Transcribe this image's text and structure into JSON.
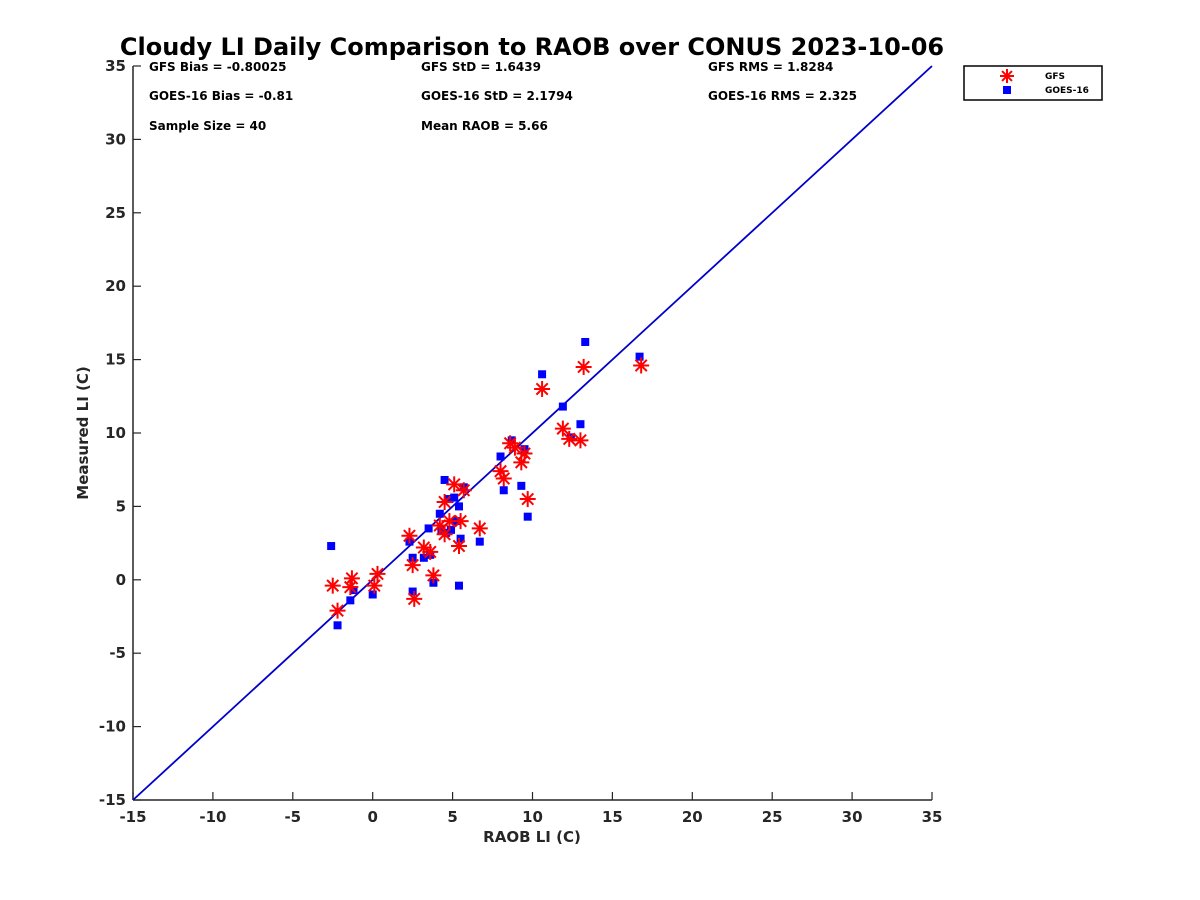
{
  "chart_data": {
    "type": "scatter",
    "title": "Cloudy LI Daily Comparison to RAOB over CONUS 2023-10-06",
    "xlabel": "RAOB LI (C)",
    "ylabel": "Measured LI (C)",
    "xlim": [
      -15,
      35
    ],
    "ylim": [
      -15,
      35
    ],
    "xticks": [
      "-15",
      "-10",
      "-5",
      "0",
      "5",
      "10",
      "15",
      "20",
      "25",
      "30",
      "35"
    ],
    "yticks": [
      "-15",
      "-10",
      "-5",
      "0",
      "5",
      "10",
      "15",
      "20",
      "25",
      "30",
      "35"
    ],
    "grid": false,
    "legend_position": "outside-top-right",
    "stats": [
      [
        "GFS Bias = -0.80025",
        "GFS StD = 1.6439",
        "GFS RMS = 1.8284"
      ],
      [
        "GOES-16 Bias = -0.81",
        "GOES-16 StD = 2.1794",
        "GOES-16 RMS = 2.325"
      ],
      [
        "Sample Size = 40",
        "Mean RAOB = 5.66",
        ""
      ]
    ],
    "reference_line": {
      "x": [
        -15,
        35
      ],
      "y": [
        -15,
        35
      ],
      "color": "#0000cc"
    },
    "series": [
      {
        "name": "GFS",
        "marker": "asterisk",
        "color": "#ff0000",
        "points": [
          [
            -2.5,
            -0.4
          ],
          [
            -2.2,
            -2.1
          ],
          [
            -1.4,
            -0.5
          ],
          [
            -1.3,
            0.1
          ],
          [
            0.1,
            -0.4
          ],
          [
            0.3,
            0.4
          ],
          [
            2.3,
            3.0
          ],
          [
            2.5,
            1.0
          ],
          [
            2.6,
            -1.3
          ],
          [
            3.2,
            2.2
          ],
          [
            3.6,
            1.9
          ],
          [
            3.8,
            0.3
          ],
          [
            4.2,
            3.7
          ],
          [
            4.5,
            3.1
          ],
          [
            4.5,
            5.3
          ],
          [
            4.8,
            4.0
          ],
          [
            5.1,
            6.5
          ],
          [
            5.4,
            2.3
          ],
          [
            5.5,
            4.0
          ],
          [
            5.7,
            6.1
          ],
          [
            6.7,
            3.5
          ],
          [
            8.0,
            7.4
          ],
          [
            8.2,
            6.9
          ],
          [
            8.6,
            9.3
          ],
          [
            8.9,
            9.0
          ],
          [
            9.3,
            8.0
          ],
          [
            9.5,
            8.6
          ],
          [
            9.7,
            5.5
          ],
          [
            10.6,
            13.0
          ],
          [
            11.9,
            10.3
          ],
          [
            12.3,
            9.6
          ],
          [
            13.0,
            9.5
          ],
          [
            13.2,
            14.5
          ],
          [
            16.8,
            14.6
          ]
        ]
      },
      {
        "name": "GOES-16",
        "marker": "square",
        "color": "#0000ff",
        "points": [
          [
            -2.6,
            2.3
          ],
          [
            -2.2,
            -3.1
          ],
          [
            -1.4,
            -1.4
          ],
          [
            -1.2,
            -0.7
          ],
          [
            0.0,
            -1.0
          ],
          [
            2.3,
            2.6
          ],
          [
            2.5,
            1.5
          ],
          [
            2.5,
            -0.8
          ],
          [
            3.2,
            1.5
          ],
          [
            3.5,
            3.5
          ],
          [
            3.6,
            1.7
          ],
          [
            3.8,
            -0.2
          ],
          [
            4.2,
            4.5
          ],
          [
            4.3,
            3.4
          ],
          [
            4.5,
            6.8
          ],
          [
            4.6,
            3.2
          ],
          [
            4.8,
            5.5
          ],
          [
            4.9,
            3.4
          ],
          [
            5.1,
            5.6
          ],
          [
            5.2,
            4.0
          ],
          [
            5.4,
            5.0
          ],
          [
            5.4,
            -0.4
          ],
          [
            5.5,
            2.8
          ],
          [
            5.7,
            6.3
          ],
          [
            6.7,
            2.6
          ],
          [
            8.0,
            8.4
          ],
          [
            8.2,
            6.1
          ],
          [
            8.7,
            9.5
          ],
          [
            9.3,
            6.4
          ],
          [
            9.5,
            8.9
          ],
          [
            9.7,
            4.3
          ],
          [
            10.6,
            14.0
          ],
          [
            11.9,
            11.8
          ],
          [
            12.4,
            9.7
          ],
          [
            13.0,
            10.6
          ],
          [
            13.3,
            16.2
          ],
          [
            16.7,
            15.2
          ]
        ]
      }
    ]
  }
}
